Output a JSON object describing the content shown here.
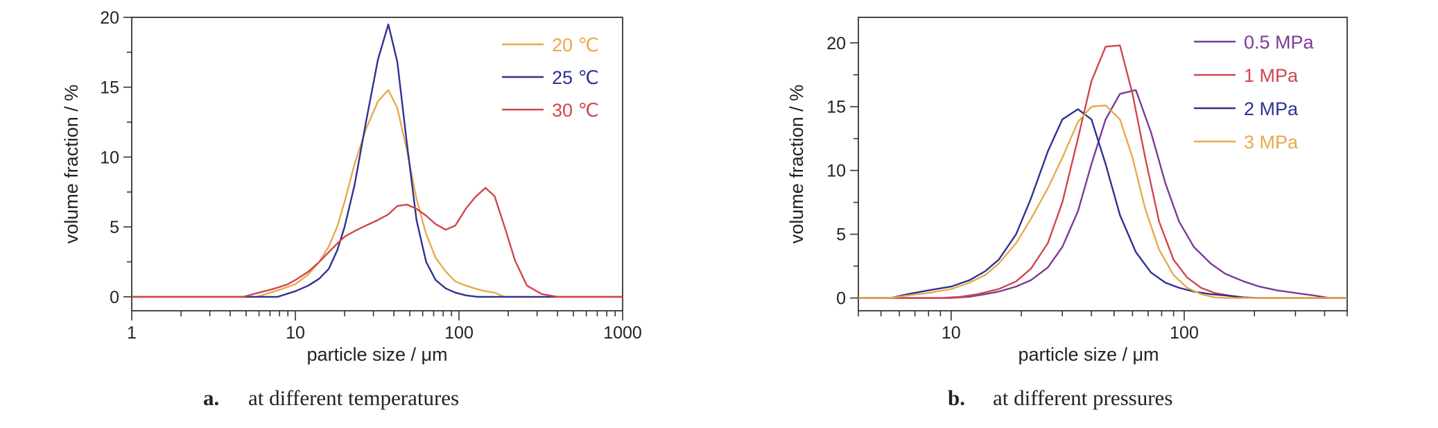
{
  "colors": {
    "orange": "#E8A94A",
    "blue": "#2E3192",
    "red": "#D0464A",
    "purple": "#7B3A96",
    "axis": "#333333"
  },
  "chart_data": [
    {
      "type": "line",
      "caption_letter": "a.",
      "caption_text": "at different temperatures",
      "xlabel": "particle size / μm",
      "ylabel": "volume fraction / %",
      "x_scale": "log",
      "xlim": [
        1,
        1000
      ],
      "ylim": [
        -1,
        20
      ],
      "xticks": [
        1,
        10,
        100,
        1000
      ],
      "xtick_labels": [
        "1",
        "10",
        "100",
        "1000"
      ],
      "yticks": [
        0,
        5,
        10,
        15,
        20
      ],
      "ytick_labels": [
        "0",
        "5",
        "10",
        "15",
        "20"
      ],
      "legend_position": "top-right",
      "series": [
        {
          "name": "20 ℃",
          "color": "#E8A94A",
          "x": [
            1,
            5.8,
            8,
            10,
            12,
            14,
            16,
            18,
            20,
            23,
            27,
            32,
            37,
            42,
            48,
            55,
            63,
            72,
            83,
            95,
            110,
            125,
            145,
            165,
            190,
            1000
          ],
          "y": [
            0,
            0,
            0.5,
            0.9,
            1.6,
            2.5,
            3.6,
            5.0,
            6.8,
            9.5,
            12.0,
            14.0,
            14.8,
            13.5,
            10.5,
            7.0,
            4.5,
            2.8,
            1.8,
            1.1,
            0.8,
            0.6,
            0.4,
            0.3,
            0,
            0
          ]
        },
        {
          "name": "25 ℃",
          "color": "#2E3192",
          "x": [
            1,
            7.8,
            10,
            12,
            14,
            16,
            18,
            20,
            23,
            27,
            32,
            37,
            42,
            48,
            55,
            63,
            72,
            83,
            95,
            110,
            130,
            1000
          ],
          "y": [
            0,
            0,
            0.4,
            0.8,
            1.3,
            2.0,
            3.3,
            5.0,
            8.0,
            12.5,
            17.0,
            19.5,
            16.8,
            11.0,
            5.5,
            2.5,
            1.2,
            0.6,
            0.3,
            0.1,
            0,
            0
          ]
        },
        {
          "name": "30 ℃",
          "color": "#D0464A",
          "x": [
            1,
            4.8,
            6,
            7,
            8,
            9,
            10,
            12,
            14,
            16,
            18,
            20,
            23,
            27,
            32,
            37,
            42,
            48,
            55,
            63,
            72,
            83,
            95,
            110,
            125,
            145,
            165,
            190,
            220,
            260,
            320,
            400,
            1000
          ],
          "y": [
            0,
            0,
            0.3,
            0.5,
            0.7,
            0.9,
            1.2,
            1.8,
            2.5,
            3.2,
            3.8,
            4.3,
            4.7,
            5.1,
            5.5,
            5.9,
            6.5,
            6.6,
            6.3,
            5.8,
            5.2,
            4.8,
            5.1,
            6.3,
            7.1,
            7.8,
            7.2,
            5.0,
            2.6,
            0.8,
            0.2,
            0,
            0
          ]
        }
      ]
    },
    {
      "type": "line",
      "caption_letter": "b.",
      "caption_text": "at different pressures",
      "xlabel": "particle size / μm",
      "ylabel": "volume fraction / %",
      "x_scale": "log",
      "xlim": [
        4,
        500
      ],
      "ylim": [
        -1,
        22
      ],
      "xticks": [
        10,
        100
      ],
      "xtick_labels": [
        "10",
        "100"
      ],
      "yticks": [
        0,
        5,
        10,
        15,
        20
      ],
      "ytick_labels": [
        "0",
        "5",
        "10",
        "15",
        "20"
      ],
      "legend_position": "top-right",
      "series": [
        {
          "name": "0.5 MPa",
          "color": "#7B3A96",
          "x": [
            4,
            10,
            12,
            14,
            16,
            19,
            22,
            26,
            30,
            35,
            40,
            46,
            53,
            62,
            72,
            83,
            95,
            110,
            130,
            150,
            180,
            210,
            250,
            300,
            360,
            420,
            500
          ],
          "y": [
            0,
            0,
            0.1,
            0.3,
            0.5,
            0.9,
            1.4,
            2.4,
            4.0,
            6.8,
            10.5,
            14.0,
            16.0,
            16.3,
            13.0,
            9.0,
            6.0,
            4.0,
            2.7,
            1.9,
            1.3,
            0.9,
            0.6,
            0.4,
            0.2,
            0,
            0
          ]
        },
        {
          "name": "1 MPa",
          "color": "#D0464A",
          "x": [
            4,
            9,
            11,
            13,
            16,
            19,
            22,
            26,
            30,
            35,
            40,
            46,
            53,
            60,
            68,
            78,
            90,
            103,
            118,
            135,
            155,
            180,
            200,
            500
          ],
          "y": [
            0,
            0,
            0.1,
            0.3,
            0.7,
            1.3,
            2.3,
            4.3,
            7.5,
            12.5,
            17.0,
            19.7,
            19.8,
            16.0,
            11.0,
            6.0,
            3.0,
            1.6,
            0.8,
            0.4,
            0.2,
            0.05,
            0,
            0
          ]
        },
        {
          "name": "2 MPa",
          "color": "#2E3192",
          "x": [
            4,
            5.5,
            6.5,
            8,
            10,
            12,
            14,
            16,
            19,
            22,
            26,
            30,
            35,
            40,
            46,
            53,
            62,
            72,
            83,
            95,
            110,
            130,
            150,
            180,
            210,
            500
          ],
          "y": [
            0,
            0,
            0.3,
            0.6,
            0.9,
            1.4,
            2.1,
            3.0,
            5.0,
            7.8,
            11.5,
            14.0,
            14.8,
            14.0,
            10.5,
            6.5,
            3.6,
            2.0,
            1.2,
            0.8,
            0.5,
            0.3,
            0.2,
            0.05,
            0,
            0
          ]
        },
        {
          "name": "3 MPa",
          "color": "#E8A94A",
          "x": [
            4,
            5.5,
            6.5,
            8,
            10,
            12,
            14,
            16,
            19,
            22,
            26,
            30,
            35,
            40,
            46,
            53,
            60,
            68,
            78,
            90,
            103,
            118,
            135,
            150,
            500
          ],
          "y": [
            0,
            0,
            0.2,
            0.4,
            0.7,
            1.2,
            1.8,
            2.7,
            4.3,
            6.2,
            8.6,
            11.0,
            13.8,
            15.0,
            15.1,
            14.0,
            11.0,
            7.0,
            3.8,
            1.8,
            0.8,
            0.3,
            0.05,
            0,
            0
          ]
        }
      ]
    }
  ]
}
